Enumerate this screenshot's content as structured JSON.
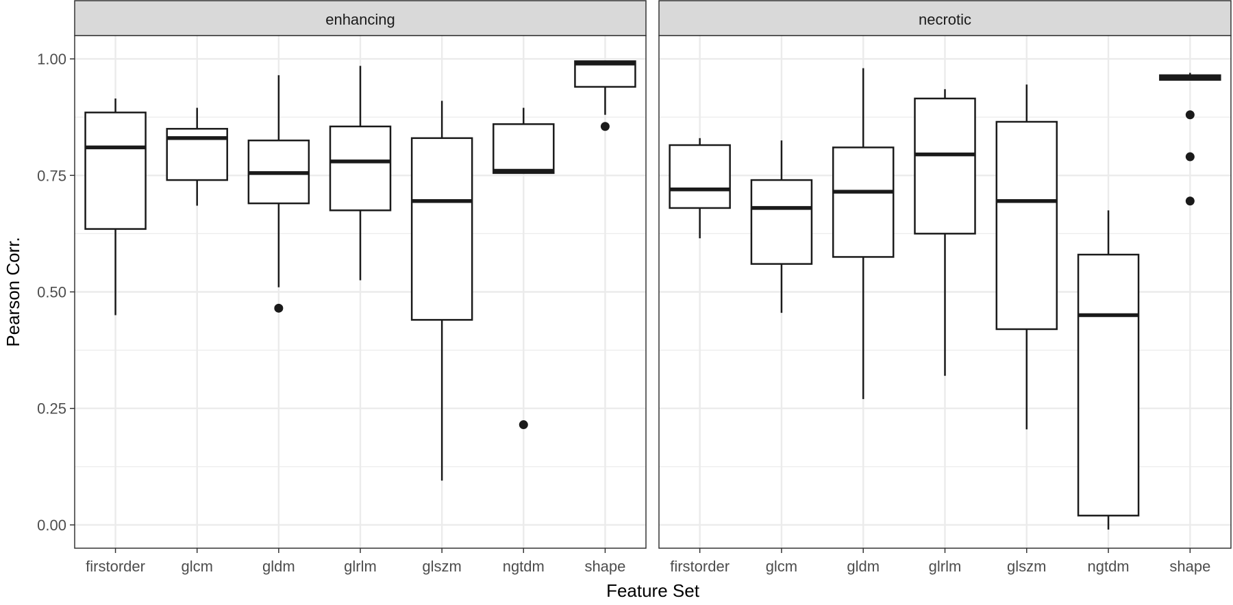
{
  "chart_data": {
    "type": "boxplot",
    "facet_labels": [
      "enhancing",
      "necrotic"
    ],
    "xlabel": "Feature Set",
    "ylabel": "Pearson Corr.",
    "ylim": [
      -0.05,
      1.05
    ],
    "y_ticks": [
      0.0,
      0.25,
      0.5,
      0.75,
      1.0
    ],
    "y_tick_labels": [
      "0.00",
      "0.25",
      "0.50",
      "0.75",
      "1.00"
    ],
    "categories": [
      "firstorder",
      "glcm",
      "gldm",
      "glrlm",
      "glszm",
      "ngtdm",
      "shape"
    ],
    "grid": true,
    "colors": {
      "strip_bg": "#d9d9d9",
      "grid": "#ebebeb",
      "frame": "#333333",
      "box": "#1a1a1a",
      "outlier": "#1a1a1a"
    },
    "panels": [
      {
        "facet": "enhancing",
        "boxes": [
          {
            "category": "firstorder",
            "whisker_low": 0.45,
            "q1": 0.635,
            "median": 0.81,
            "q3": 0.885,
            "whisker_high": 0.915,
            "outliers": []
          },
          {
            "category": "glcm",
            "whisker_low": 0.685,
            "q1": 0.74,
            "median": 0.83,
            "q3": 0.85,
            "whisker_high": 0.895,
            "outliers": []
          },
          {
            "category": "gldm",
            "whisker_low": 0.51,
            "q1": 0.69,
            "median": 0.755,
            "q3": 0.825,
            "whisker_high": 0.965,
            "outliers": [
              0.465
            ]
          },
          {
            "category": "glrlm",
            "whisker_low": 0.525,
            "q1": 0.675,
            "median": 0.78,
            "q3": 0.855,
            "whisker_high": 0.985,
            "outliers": []
          },
          {
            "category": "glszm",
            "whisker_low": 0.095,
            "q1": 0.44,
            "median": 0.695,
            "q3": 0.83,
            "whisker_high": 0.91,
            "outliers": []
          },
          {
            "category": "ngtdm",
            "whisker_low": 0.755,
            "q1": 0.755,
            "median": 0.76,
            "q3": 0.86,
            "whisker_high": 0.895,
            "outliers": [
              0.215
            ]
          },
          {
            "category": "shape",
            "whisker_low": 0.88,
            "q1": 0.94,
            "median": 0.99,
            "q3": 0.995,
            "whisker_high": 0.995,
            "outliers": [
              0.855
            ]
          }
        ]
      },
      {
        "facet": "necrotic",
        "boxes": [
          {
            "category": "firstorder",
            "whisker_low": 0.615,
            "q1": 0.68,
            "median": 0.72,
            "q3": 0.815,
            "whisker_high": 0.83,
            "outliers": []
          },
          {
            "category": "glcm",
            "whisker_low": 0.455,
            "q1": 0.56,
            "median": 0.68,
            "q3": 0.74,
            "whisker_high": 0.825,
            "outliers": []
          },
          {
            "category": "gldm",
            "whisker_low": 0.27,
            "q1": 0.575,
            "median": 0.715,
            "q3": 0.81,
            "whisker_high": 0.98,
            "outliers": []
          },
          {
            "category": "glrlm",
            "whisker_low": 0.32,
            "q1": 0.625,
            "median": 0.795,
            "q3": 0.915,
            "whisker_high": 0.935,
            "outliers": []
          },
          {
            "category": "glszm",
            "whisker_low": 0.205,
            "q1": 0.42,
            "median": 0.695,
            "q3": 0.865,
            "whisker_high": 0.945,
            "outliers": []
          },
          {
            "category": "ngtdm",
            "whisker_low": -0.01,
            "q1": 0.02,
            "median": 0.45,
            "q3": 0.58,
            "whisker_high": 0.675,
            "outliers": []
          },
          {
            "category": "shape",
            "whisker_low": 0.955,
            "q1": 0.955,
            "median": 0.96,
            "q3": 0.965,
            "whisker_high": 0.97,
            "outliers": [
              0.88,
              0.79,
              0.695
            ]
          }
        ]
      }
    ]
  }
}
